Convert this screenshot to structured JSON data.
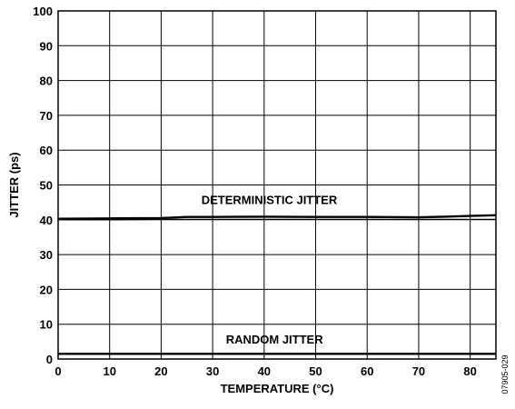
{
  "chart_data": {
    "type": "line",
    "title": "",
    "xlabel": "TEMPERATURE (°C)",
    "ylabel": "JITTER (ps)",
    "xlim": [
      0,
      85
    ],
    "ylim": [
      0,
      100
    ],
    "x_ticks": [
      0,
      10,
      20,
      30,
      40,
      50,
      60,
      70,
      80
    ],
    "y_ticks": [
      0,
      10,
      20,
      30,
      40,
      50,
      60,
      70,
      80,
      90,
      100
    ],
    "grid": true,
    "series": [
      {
        "name": "DETERMINISTIC JITTER",
        "x": [
          0,
          10,
          20,
          25,
          30,
          40,
          50,
          60,
          70,
          75,
          80,
          85
        ],
        "y": [
          40.3,
          40.4,
          40.5,
          40.8,
          40.8,
          40.9,
          40.8,
          40.8,
          40.7,
          40.9,
          41.1,
          41.3
        ]
      },
      {
        "name": "",
        "x": [
          0,
          10,
          20,
          30,
          40,
          50,
          60,
          70,
          80,
          85
        ],
        "y": [
          40.0,
          40.0,
          40.1,
          40.1,
          40.1,
          40.1,
          40.1,
          40.1,
          40.1,
          40.1
        ]
      },
      {
        "name": "RANDOM JITTER",
        "x": [
          0,
          10,
          20,
          30,
          40,
          50,
          60,
          70,
          80,
          85
        ],
        "y": [
          1.5,
          1.5,
          1.5,
          1.5,
          1.5,
          1.5,
          1.5,
          1.5,
          1.5,
          1.5
        ]
      }
    ],
    "annotations": [
      "DETERMINISTIC JITTER",
      "RANDOM JITTER"
    ],
    "figure_code": "07905-029"
  }
}
